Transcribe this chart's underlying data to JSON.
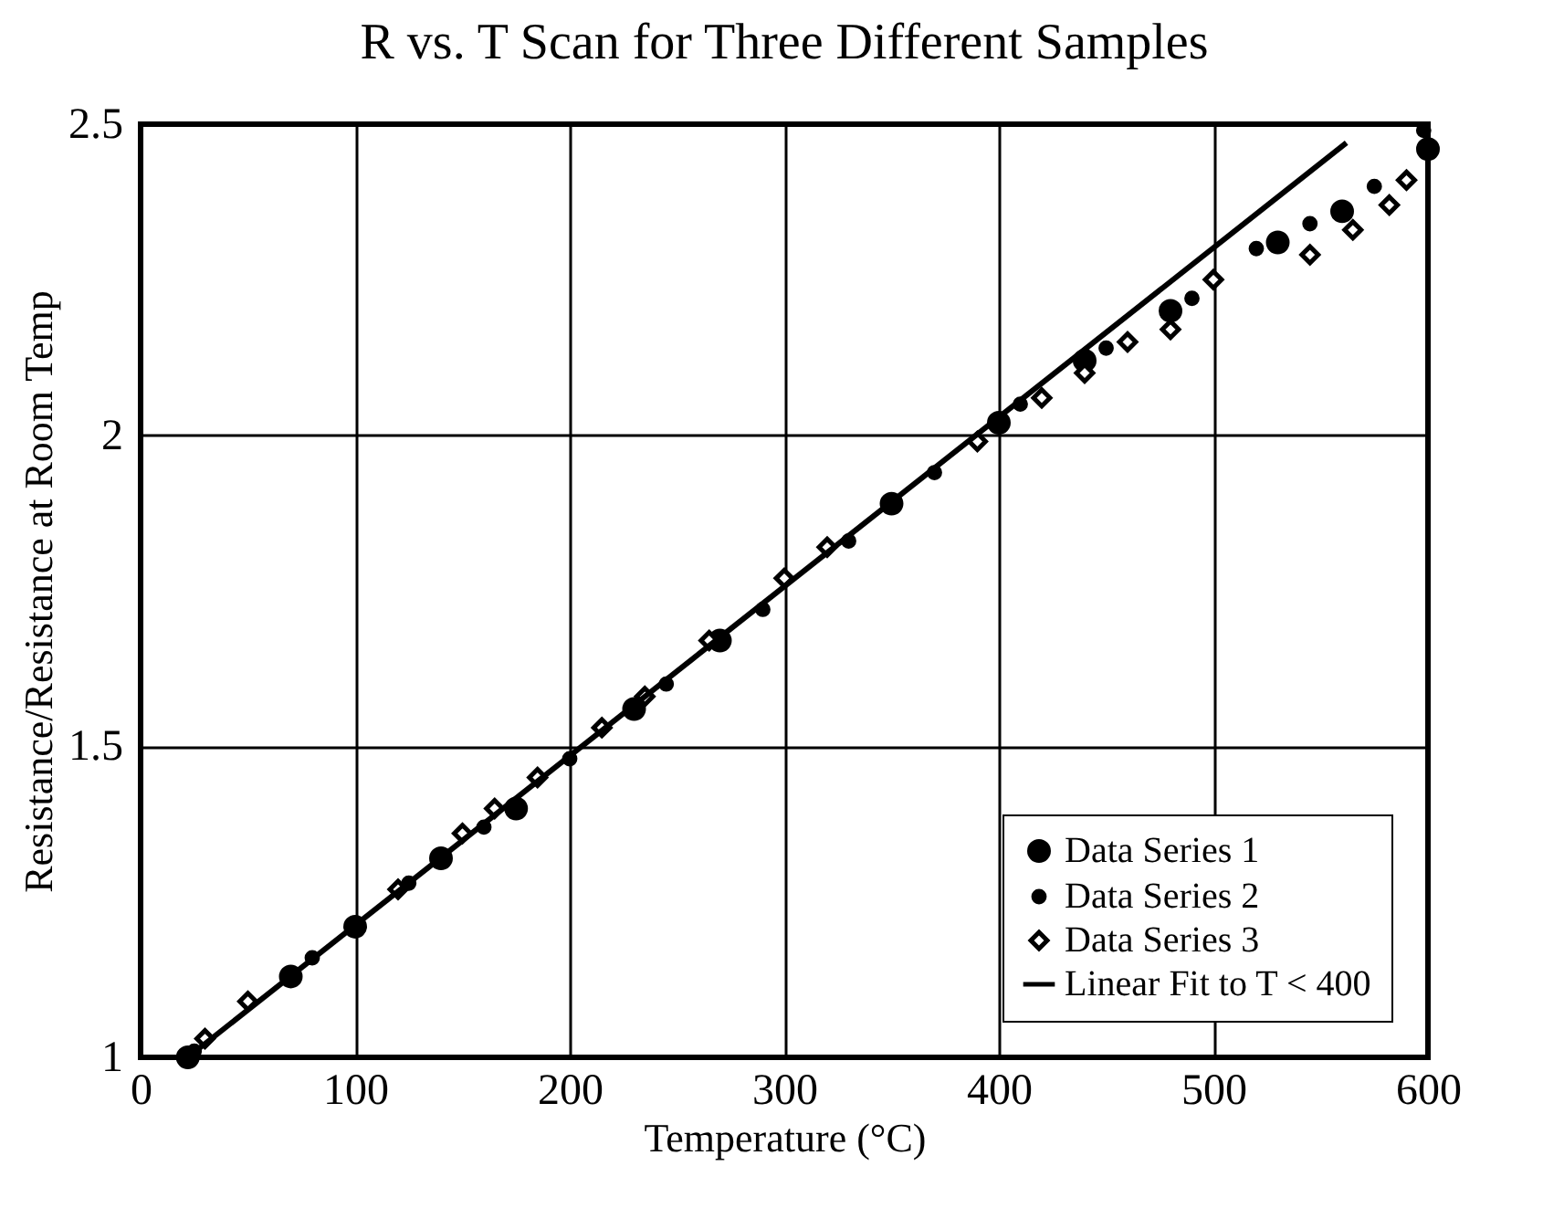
{
  "chart_data": {
    "type": "scatter",
    "title": "R vs. T Scan for Three Different Samples",
    "xlabel": "Temperature (°C)",
    "ylabel": "Resistance/Resistance at Room Temp",
    "xlim": [
      0,
      600
    ],
    "xticks": [
      0,
      100,
      200,
      300,
      400,
      500,
      600
    ],
    "ylim": [
      1,
      2.5
    ],
    "yticks": [
      1,
      1.5,
      2,
      2.5
    ],
    "grid": true,
    "legend": "bottom right",
    "series": [
      {
        "name": "Data Series 1",
        "type": "scatter",
        "marker": "circle",
        "color": "#000000",
        "x": [
          22,
          70,
          100,
          140,
          175,
          230,
          270,
          350,
          400,
          440,
          480,
          530,
          560,
          600
        ],
        "values": [
          1.0,
          1.13,
          1.21,
          1.32,
          1.4,
          1.56,
          1.67,
          1.89,
          2.02,
          2.12,
          2.2,
          2.31,
          2.36,
          2.46
        ]
      },
      {
        "name": "Data Series 2",
        "type": "scatter",
        "marker": "circle",
        "color": "#000000",
        "x": [
          25,
          80,
          125,
          160,
          200,
          245,
          290,
          330,
          370,
          410,
          450,
          490,
          520,
          545,
          575,
          598
        ],
        "values": [
          1.01,
          1.16,
          1.28,
          1.37,
          1.48,
          1.6,
          1.72,
          1.83,
          1.94,
          2.05,
          2.14,
          2.22,
          2.3,
          2.34,
          2.4,
          2.49
        ]
      },
      {
        "name": "Data Series 3",
        "type": "scatter",
        "marker": "diamond",
        "color": "#000000",
        "x": [
          30,
          50,
          120,
          150,
          165,
          185,
          215,
          235,
          265,
          300,
          320,
          390,
          420,
          440,
          460,
          480,
          500,
          545,
          565,
          582,
          590
        ],
        "values": [
          1.03,
          1.09,
          1.27,
          1.36,
          1.4,
          1.45,
          1.53,
          1.58,
          1.67,
          1.77,
          1.82,
          1.99,
          2.06,
          2.1,
          2.15,
          2.17,
          2.25,
          2.29,
          2.33,
          2.37,
          2.41
        ]
      },
      {
        "name": "Linear Fit to T < 400",
        "type": "line",
        "marker": "none",
        "color": "#000000",
        "x": [
          22,
          562
        ],
        "values": [
          1.0,
          2.47
        ]
      }
    ]
  }
}
